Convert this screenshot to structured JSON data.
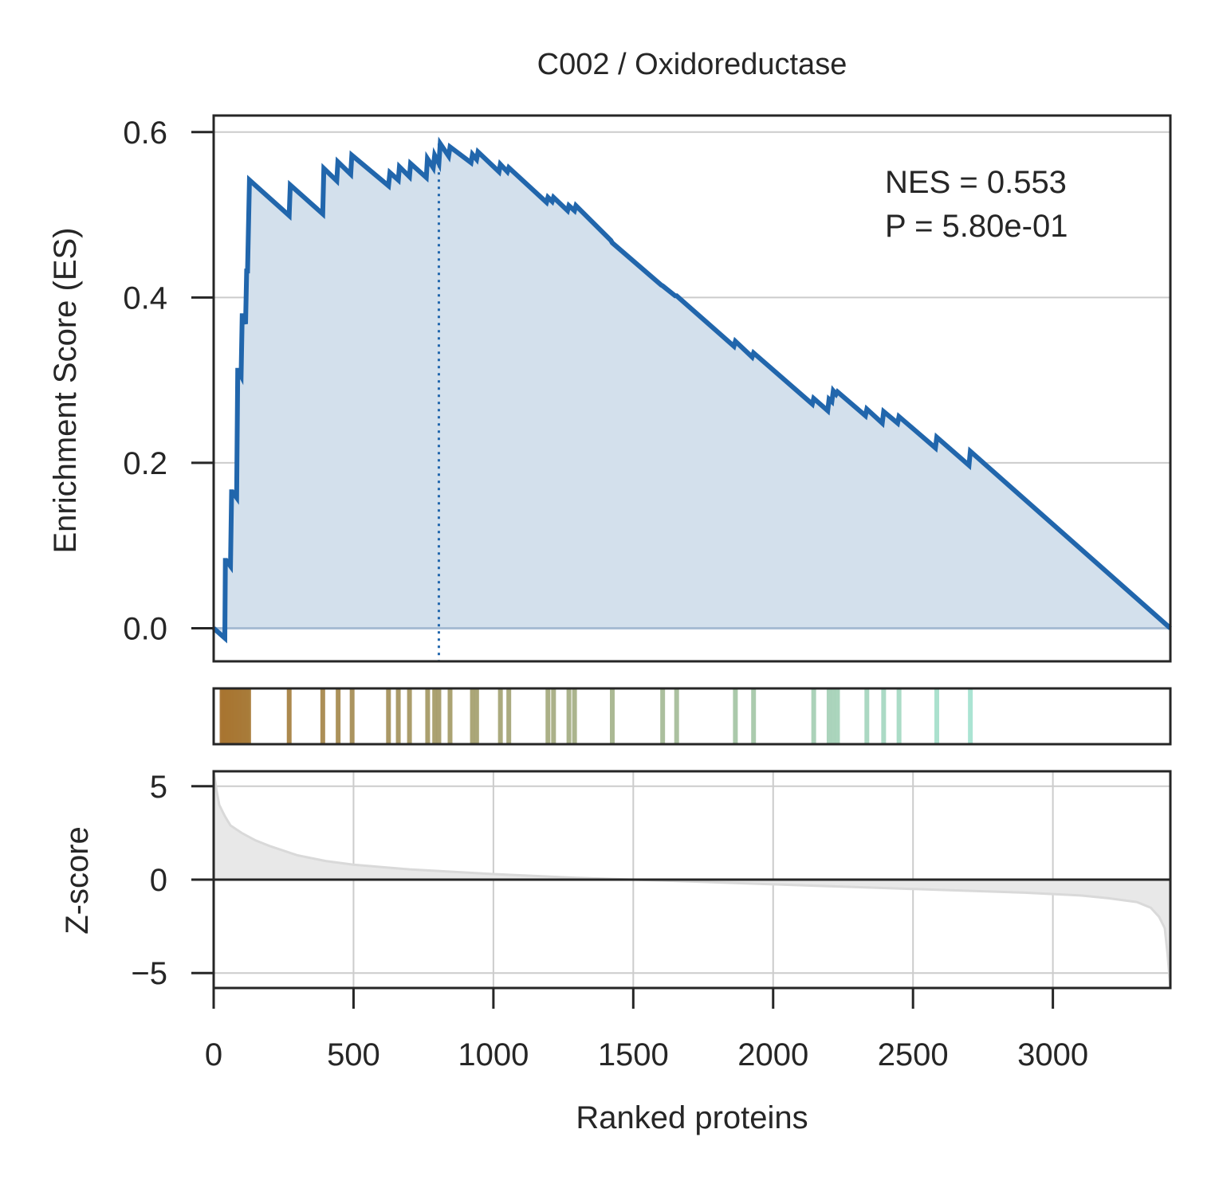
{
  "chart_data": {
    "type": "line",
    "title": "C002 / Oxidoreductase",
    "xlabel": "Ranked proteins",
    "xlim": [
      0,
      3420
    ],
    "x_ticks": [
      0,
      500,
      1000,
      1500,
      2000,
      2500,
      3000
    ],
    "x_tick_labels": [
      "0",
      "500",
      "1000",
      "1500",
      "2000",
      "2500",
      "3000"
    ],
    "grid": true,
    "colors": {
      "es_line": "#2166ac",
      "es_fill": "#d3e0ec",
      "zscore_fill": "#e8e8e8",
      "zscore_line": "#d9d9d9",
      "grid": "#cccccc",
      "frame": "#262626",
      "hits_start": "#a8712b",
      "hits_end": "#a6e3d1"
    },
    "annotations": {
      "nes": "NES = 0.553",
      "pvalue": "P = 5.80e-01"
    },
    "panels": {
      "enrichment": {
        "ylabel": "Enrichment Score (ES)",
        "ylim": [
          -0.04,
          0.62
        ],
        "y_ticks": [
          0.0,
          0.2,
          0.4,
          0.6
        ],
        "y_tick_labels": [
          "0.0",
          "0.2",
          "0.4",
          "0.6"
        ],
        "peak_rank": 805,
        "series": [
          {
            "x": [
              0,
              40,
              42,
              45,
              60,
              64,
              67,
              82,
              86,
              87,
              98,
              102,
              104,
              114,
              118,
              121,
              128,
              270,
              274,
              390,
              394,
              440,
              444,
              490,
              494,
              625,
              630,
              660,
              664,
              700,
              704,
              760,
              764,
              785,
              790,
              805,
              810,
              840,
              845,
              920,
              925,
              940,
              945,
              1020,
              1025,
              1050,
              1055,
              1190,
              1195,
              1210,
              1215,
              1265,
              1270,
              1290,
              1295,
              1420,
              1425,
              1600,
              1605,
              1650,
              1655,
              1860,
              1865,
              1925,
              1930,
              2140,
              2145,
              2195,
              2200,
              2210,
              2215,
              2225,
              2230,
              2330,
              2335,
              2390,
              2395,
              2445,
              2450,
              2580,
              2585,
              2700,
              2705,
              3420
            ],
            "y": [
              0.0,
              -0.012,
              0.082,
              0.082,
              0.075,
              0.165,
              0.165,
              0.158,
              0.312,
              0.312,
              0.305,
              0.378,
              0.378,
              0.368,
              0.432,
              0.432,
              0.542,
              0.499,
              0.536,
              0.501,
              0.556,
              0.541,
              0.564,
              0.549,
              0.572,
              0.535,
              0.551,
              0.542,
              0.558,
              0.546,
              0.562,
              0.545,
              0.568,
              0.557,
              0.572,
              0.562,
              0.586,
              0.571,
              0.582,
              0.563,
              0.573,
              0.567,
              0.576,
              0.552,
              0.561,
              0.552,
              0.557,
              0.515,
              0.521,
              0.516,
              0.521,
              0.505,
              0.511,
              0.505,
              0.511,
              0.469,
              0.466,
              0.415,
              0.414,
              0.402,
              0.402,
              0.341,
              0.347,
              0.328,
              0.333,
              0.271,
              0.278,
              0.263,
              0.277,
              0.274,
              0.287,
              0.283,
              0.286,
              0.257,
              0.265,
              0.248,
              0.262,
              0.248,
              0.256,
              0.218,
              0.231,
              0.197,
              0.214,
              0.0
            ]
          }
        ]
      },
      "hits": {
        "ranks": [
          30,
          35,
          40,
          45,
          50,
          55,
          60,
          65,
          70,
          75,
          80,
          85,
          90,
          100,
          105,
          110,
          115,
          120,
          125,
          270,
          390,
          445,
          495,
          625,
          660,
          700,
          765,
          790,
          805,
          845,
          925,
          940,
          1025,
          1055,
          1195,
          1215,
          1270,
          1290,
          1425,
          1605,
          1655,
          1865,
          1930,
          2145,
          2200,
          2215,
          2230,
          2335,
          2395,
          2450,
          2585,
          2705
        ]
      },
      "zscore": {
        "ylabel": "Z-score",
        "ylim": [
          -5.8,
          5.8
        ],
        "y_ticks": [
          -5,
          0,
          5
        ],
        "y_tick_labels": [
          "−5",
          "0",
          "5"
        ],
        "series": [
          {
            "x": [
              0,
              10,
              20,
              40,
              60,
              100,
              150,
              200,
              300,
              400,
              500,
              700,
              1000,
              1300,
              1500,
              1700,
              2000,
              2300,
              2600,
              2900,
              3100,
              3200,
              3300,
              3350,
              3380,
              3400,
              3410,
              3420
            ],
            "y": [
              5.8,
              4.8,
              4.0,
              3.4,
              2.9,
              2.5,
              2.1,
              1.8,
              1.3,
              1.0,
              0.8,
              0.55,
              0.3,
              0.1,
              0.0,
              -0.1,
              -0.25,
              -0.4,
              -0.55,
              -0.7,
              -0.85,
              -1.0,
              -1.2,
              -1.5,
              -2.0,
              -2.6,
              -4.0,
              -5.8
            ]
          }
        ]
      }
    }
  }
}
